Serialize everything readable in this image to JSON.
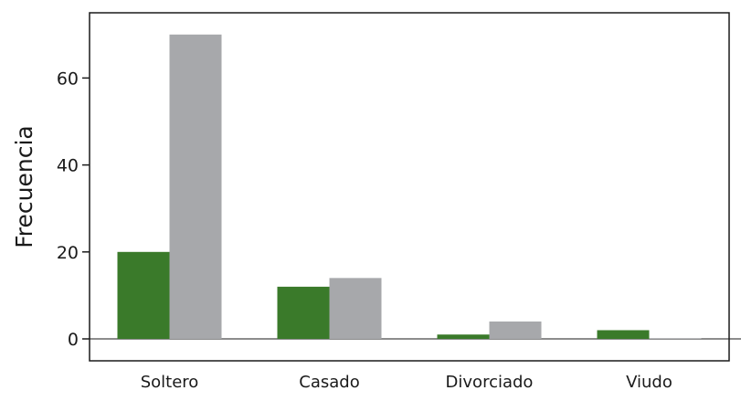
{
  "chart_data": {
    "type": "bar",
    "title": "",
    "xlabel": "",
    "ylabel": "Frecuencia",
    "categories": [
      "Soltero",
      "Casado",
      "Divorciado",
      "Viudo"
    ],
    "series": [
      {
        "values": [
          20,
          12,
          1,
          2
        ],
        "color": "#3a7a2a"
      },
      {
        "values": [
          70,
          14,
          4,
          0
        ],
        "color": "#a7a8ab"
      }
    ],
    "yticks": [
      0,
      20,
      40,
      60
    ],
    "ytick_labels": [
      "0",
      "20",
      "40",
      "60"
    ],
    "ylim": [
      -5,
      75
    ],
    "grid": false,
    "legend": "none"
  }
}
